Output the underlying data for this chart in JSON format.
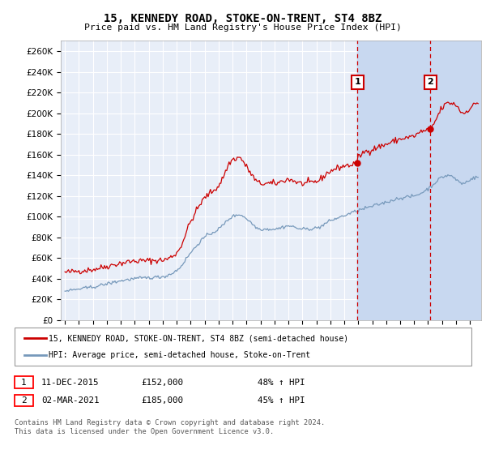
{
  "title": "15, KENNEDY ROAD, STOKE-ON-TRENT, ST4 8BZ",
  "subtitle": "Price paid vs. HM Land Registry's House Price Index (HPI)",
  "ylim": [
    0,
    270000
  ],
  "yticks": [
    0,
    20000,
    40000,
    60000,
    80000,
    100000,
    120000,
    140000,
    160000,
    180000,
    200000,
    220000,
    240000,
    260000
  ],
  "ytick_labels": [
    "£0",
    "£20K",
    "£40K",
    "£60K",
    "£80K",
    "£100K",
    "£120K",
    "£140K",
    "£160K",
    "£180K",
    "£200K",
    "£220K",
    "£240K",
    "£260K"
  ],
  "plot_bg_color": "#e8eef8",
  "grid_color": "#ffffff",
  "red_line_color": "#cc0000",
  "blue_line_color": "#7799bb",
  "marker1_date": "11-DEC-2015",
  "marker1_price": 152000,
  "marker1_pct": "48%",
  "marker1_x": 2015.95,
  "marker2_date": "02-MAR-2021",
  "marker2_price": 185000,
  "marker2_pct": "45%",
  "marker2_x": 2021.17,
  "legend_line1": "15, KENNEDY ROAD, STOKE-ON-TRENT, ST4 8BZ (semi-detached house)",
  "legend_line2": "HPI: Average price, semi-detached house, Stoke-on-Trent",
  "footer": "Contains HM Land Registry data © Crown copyright and database right 2024.\nThis data is licensed under the Open Government Licence v3.0.",
  "xlim_left": 1994.7,
  "xlim_right": 2024.8
}
